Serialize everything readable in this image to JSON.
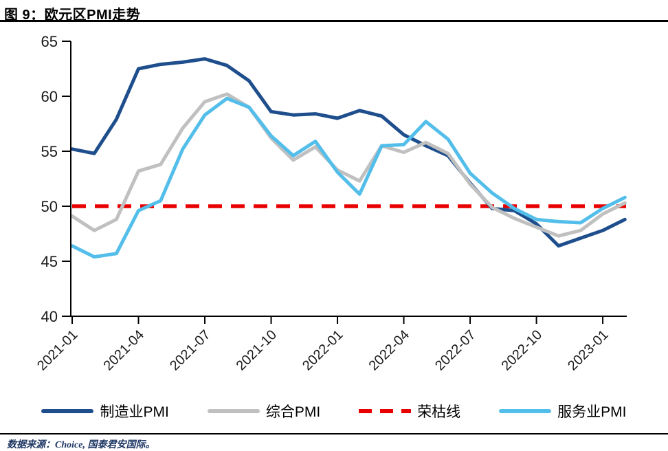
{
  "title": "图 9：欧元区PMI走势",
  "footer": {
    "source": "数据来源：Choice, 国泰君安国际。"
  },
  "colors": {
    "manufacturing": "#1E4E8C",
    "composite": "#C0C0C0",
    "services": "#53BEEA",
    "threshold": "#E80000",
    "axis": "#000000",
    "tick_text": "#1a1a1a"
  },
  "legend": [
    {
      "label": "制造业PMI",
      "color": "#1E4E8C",
      "style": "solid"
    },
    {
      "label": "综合PMI",
      "color": "#C0C0C0",
      "style": "solid"
    },
    {
      "label": "荣枯线",
      "color": "#E80000",
      "style": "dashed"
    },
    {
      "label": "服务业PMI",
      "color": "#53BEEA",
      "style": "solid"
    }
  ],
  "chart_data": {
    "type": "line",
    "x": [
      "2021-01",
      "2021-02",
      "2021-03",
      "2021-04",
      "2021-05",
      "2021-06",
      "2021-07",
      "2021-08",
      "2021-09",
      "2021-10",
      "2021-11",
      "2021-12",
      "2022-01",
      "2022-02",
      "2022-03",
      "2022-04",
      "2022-05",
      "2022-06",
      "2022-07",
      "2022-08",
      "2022-09",
      "2022-10",
      "2022-11",
      "2022-12",
      "2023-01",
      "2023-02"
    ],
    "x_tick_labels": [
      "2021-01",
      "2021-04",
      "2021-07",
      "2021-10",
      "2022-01",
      "2022-04",
      "2022-07",
      "2022-10",
      "2023-01"
    ],
    "ylim": [
      40,
      65
    ],
    "y_ticks": [
      65,
      60,
      55,
      50,
      45,
      40
    ],
    "grid": false,
    "legend_position": "bottom",
    "series": [
      {
        "name": "制造业PMI",
        "color": "#1E4E8C",
        "style": "solid",
        "values": [
          55.2,
          54.8,
          57.9,
          62.5,
          62.9,
          63.1,
          63.4,
          62.8,
          61.4,
          58.6,
          58.3,
          58.4,
          58.0,
          58.7,
          58.2,
          56.5,
          55.5,
          54.6,
          52.1,
          49.8,
          49.6,
          48.4,
          46.4,
          47.1,
          47.8,
          48.8
        ]
      },
      {
        "name": "综合PMI",
        "color": "#C0C0C0",
        "style": "solid",
        "values": [
          49.1,
          47.8,
          48.8,
          53.2,
          53.8,
          57.1,
          59.5,
          60.2,
          59.0,
          56.2,
          54.2,
          55.4,
          53.3,
          52.3,
          55.5,
          54.9,
          55.8,
          54.8,
          52.0,
          49.9,
          48.9,
          48.1,
          47.3,
          47.8,
          49.3,
          50.3
        ]
      },
      {
        "name": "服务业PMI",
        "color": "#53BEEA",
        "style": "solid",
        "values": [
          46.4,
          45.4,
          45.7,
          49.6,
          50.5,
          55.2,
          58.3,
          59.8,
          59.0,
          56.4,
          54.6,
          55.9,
          53.1,
          51.1,
          55.5,
          55.6,
          57.7,
          56.1,
          53.0,
          51.2,
          49.8,
          48.8,
          48.6,
          48.5,
          49.8,
          50.8
        ]
      },
      {
        "name": "荣枯线",
        "color": "#E80000",
        "style": "dashed",
        "constant": 50
      }
    ]
  }
}
